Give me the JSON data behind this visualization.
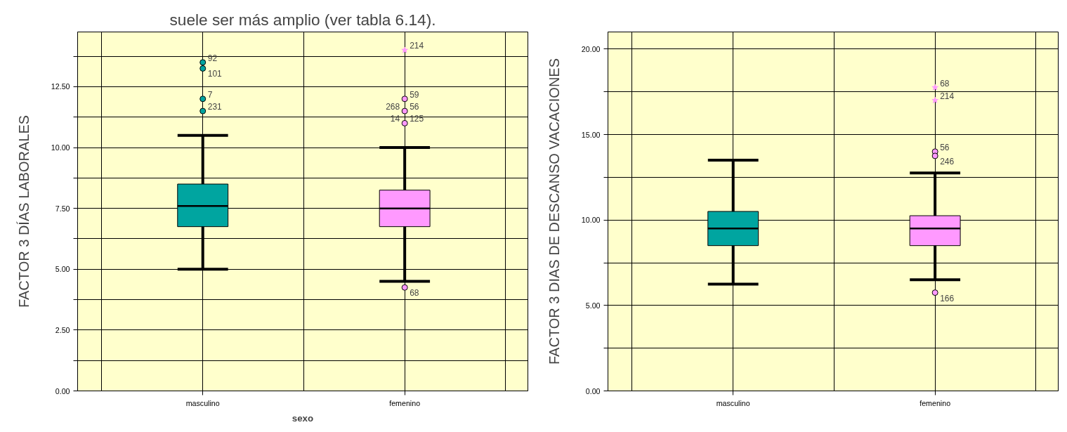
{
  "chart_data": [
    {
      "type": "box",
      "categories": [
        "masculino",
        "femenino"
      ],
      "colors": [
        "#00a5a0",
        "#ff99ff"
      ],
      "xlabel": "sexo",
      "ylabel": "FACTOR 3 DÍAS LABORALES",
      "ylim": [
        0,
        14.75
      ],
      "yticks": [
        {
          "value": 0,
          "label": "0.00"
        },
        {
          "value": 1.25,
          "label": null
        },
        {
          "value": 2.5,
          "label": "2.50"
        },
        {
          "value": 3.75,
          "label": null
        },
        {
          "value": 5,
          "label": "5.00"
        },
        {
          "value": 6.25,
          "label": null
        },
        {
          "value": 7.5,
          "label": "7.50"
        },
        {
          "value": 8.75,
          "label": null
        },
        {
          "value": 10,
          "label": "10.00"
        },
        {
          "value": 11.25,
          "label": null
        },
        {
          "value": 12.5,
          "label": "12.50"
        },
        {
          "value": 13.75,
          "label": null
        }
      ],
      "grid": true,
      "boxes": [
        {
          "low": 5,
          "q1": 6.75,
          "median": 7.6,
          "q3": 8.5,
          "high": 10.5
        },
        {
          "low": 4.5,
          "q1": 6.75,
          "median": 7.5,
          "q3": 8.25,
          "high": 10
        }
      ],
      "series": [
        {
          "type": "scatter",
          "marker": "circle",
          "color": "#00a5a0",
          "x": [
            "masculino",
            "masculino",
            "masculino",
            "masculino"
          ],
          "values": [
            13.5,
            13.25,
            12,
            11.5
          ]
        },
        {
          "type": "scatter",
          "marker": "circle",
          "color": "#ff99ff",
          "x": [
            "femenino",
            "femenino",
            "femenino",
            "femenino"
          ],
          "values": [
            12,
            11.5,
            11,
            4.25
          ]
        },
        {
          "type": "scatter",
          "marker": "star",
          "color": "#ff99ff",
          "x": [
            "femenino"
          ],
          "values": [
            14
          ]
        }
      ],
      "annotations": [
        "suele ser más amplio (ver tabla 6.14).",
        {
          "text": "92",
          "x": "masculino",
          "y": 13.5
        },
        {
          "text": "101",
          "x": "masculino",
          "y": 13.25
        },
        {
          "text": "7",
          "x": "masculino",
          "y": 12
        },
        {
          "text": "231",
          "x": "masculino",
          "y": 11.5
        },
        {
          "text": "214",
          "x": "femenino",
          "y": 14
        },
        {
          "text": "59",
          "x": "femenino",
          "y": 12
        },
        {
          "text": "56",
          "x": "femenino",
          "y": 11.5
        },
        {
          "text": "268",
          "x": "femenino",
          "y": 11.5
        },
        {
          "text": "125",
          "x": "femenino",
          "y": 11
        },
        {
          "text": "14",
          "x": "femenino",
          "y": 11
        },
        {
          "text": "68",
          "x": "femenino",
          "y": 4.25
        }
      ]
    },
    {
      "type": "box",
      "categories": [
        "masculino",
        "femenino"
      ],
      "colors": [
        "#00a5a0",
        "#ff99ff"
      ],
      "ylabel": "FACTOR 3 DIAS DE DESCANSO VACACIONES",
      "ylim": [
        0,
        21
      ],
      "yticks": [
        {
          "value": 0,
          "label": "0.00"
        },
        {
          "value": 2.5,
          "label": null
        },
        {
          "value": 5,
          "label": "5.00"
        },
        {
          "value": 7.5,
          "label": null
        },
        {
          "value": 10,
          "label": "10.00"
        },
        {
          "value": 12.5,
          "label": null
        },
        {
          "value": 15,
          "label": "15.00"
        },
        {
          "value": 17.5,
          "label": null
        },
        {
          "value": 20,
          "label": "20.00"
        }
      ],
      "grid": true,
      "boxes": [
        {
          "low": 6.25,
          "q1": 8.5,
          "median": 9.5,
          "q3": 10.5,
          "high": 13.5
        },
        {
          "low": 6.5,
          "q1": 8.5,
          "median": 9.5,
          "q3": 10.25,
          "high": 12.75
        }
      ],
      "series": [
        {
          "type": "scatter",
          "marker": "circle",
          "color": "#ff99ff",
          "x": [
            "femenino",
            "femenino",
            "femenino"
          ],
          "values": [
            14,
            13.75,
            5.75
          ]
        },
        {
          "type": "scatter",
          "marker": "star",
          "color": "#ff99ff",
          "x": [
            "femenino",
            "femenino"
          ],
          "values": [
            17.75,
            17
          ]
        }
      ],
      "annotations": [
        {
          "text": "68",
          "x": "femenino",
          "y": 17.75
        },
        {
          "text": "214",
          "x": "femenino",
          "y": 17
        },
        {
          "text": "56",
          "x": "femenino",
          "y": 14
        },
        {
          "text": "246",
          "x": "femenino",
          "y": 13.75
        },
        {
          "text": "166",
          "x": "femenino",
          "y": 5.75
        }
      ]
    }
  ]
}
